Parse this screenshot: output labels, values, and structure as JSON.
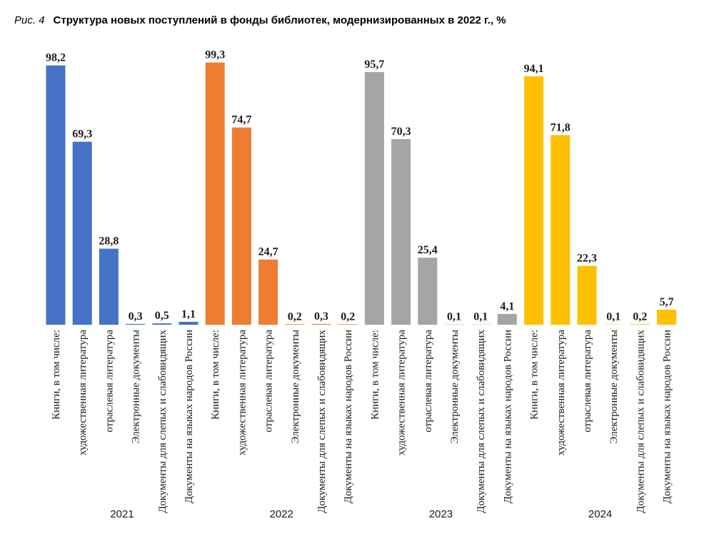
{
  "figure": {
    "number": "Рис. 4",
    "title": "Структура новых поступлений в фонды библиотек, модернизированных в 2022 г., %"
  },
  "chart_data": {
    "type": "bar",
    "ylim": [
      0,
      100
    ],
    "categories": [
      "Книги, в том числе:",
      "художественная литература",
      "отраслевая литература",
      "Электронные документы",
      "Документы для слепых и слабовидящих",
      "Документы на языках народов России"
    ],
    "groups": [
      {
        "name": "2021",
        "color": "#4472c4",
        "values": [
          98.2,
          69.3,
          28.8,
          0.3,
          0.5,
          1.1
        ],
        "labels": [
          "98,2",
          "69,3",
          "28,8",
          "0,3",
          "0,5",
          "1,1"
        ]
      },
      {
        "name": "2022",
        "color": "#ed7d31",
        "values": [
          99.3,
          74.7,
          24.7,
          0.2,
          0.3,
          0.2
        ],
        "labels": [
          "99,3",
          "74,7",
          "24,7",
          "0,2",
          "0,3",
          "0,2"
        ]
      },
      {
        "name": "2023",
        "color": "#a5a5a5",
        "values": [
          95.7,
          70.3,
          25.4,
          0.1,
          0.1,
          4.1
        ],
        "labels": [
          "95,7",
          "70,3",
          "25,4",
          "0,1",
          "0,1",
          "4,1"
        ]
      },
      {
        "name": "2024",
        "color": "#ffc000",
        "values": [
          94.1,
          71.8,
          22.3,
          0.1,
          0.2,
          5.7
        ],
        "labels": [
          "94,1",
          "71,8",
          "22,3",
          "0,1",
          "0,2",
          "5,7"
        ]
      }
    ]
  }
}
